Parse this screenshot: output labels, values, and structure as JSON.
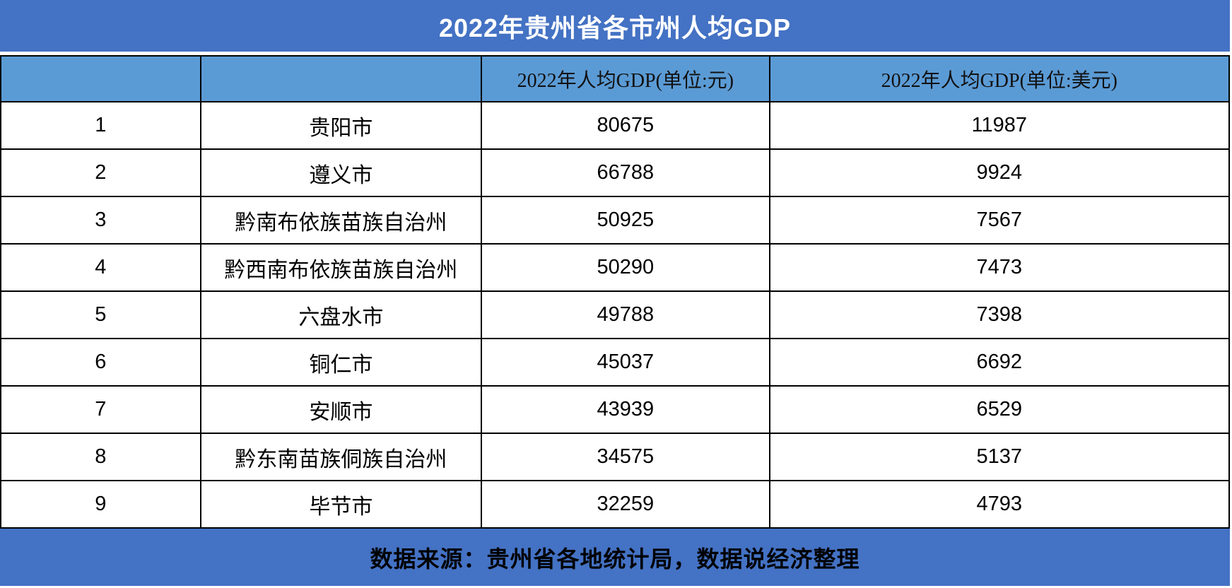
{
  "title": "2022年贵州省各市州人均GDP",
  "header": {
    "rank_label": "",
    "region_label": "",
    "gdp_cny_label": "2022年人均GDP(单位:元)",
    "gdp_usd_label": "2022年人均GDP(单位:美元)"
  },
  "rows": [
    {
      "rank": "1",
      "name": "贵阳市",
      "gdp_cny": "80675",
      "gdp_usd": "11987"
    },
    {
      "rank": "2",
      "name": "遵义市",
      "gdp_cny": "66788",
      "gdp_usd": "9924"
    },
    {
      "rank": "3",
      "name": "黔南布依族苗族自治州",
      "gdp_cny": "50925",
      "gdp_usd": "7567"
    },
    {
      "rank": "4",
      "name": "黔西南布依族苗族自治州",
      "gdp_cny": "50290",
      "gdp_usd": "7473"
    },
    {
      "rank": "5",
      "name": "六盘水市",
      "gdp_cny": "49788",
      "gdp_usd": "7398"
    },
    {
      "rank": "6",
      "name": "铜仁市",
      "gdp_cny": "45037",
      "gdp_usd": "6692"
    },
    {
      "rank": "7",
      "name": "安顺市",
      "gdp_cny": "43939",
      "gdp_usd": "6529"
    },
    {
      "rank": "8",
      "name": "黔东南苗族侗族自治州",
      "gdp_cny": "34575",
      "gdp_usd": "5137"
    },
    {
      "rank": "9",
      "name": "毕节市",
      "gdp_cny": "32259",
      "gdp_usd": "4793"
    }
  ],
  "footer": {
    "source": "数据来源：贵州省各地统计局，数据说经济整理"
  },
  "colors": {
    "title_bar": "#4472C4",
    "header_row": "#5B9BD5",
    "footer_bar": "#4472C4",
    "border": "#000000",
    "title_text": "#FFFFFF",
    "body_text": "#000000"
  },
  "chart_data": {
    "type": "table",
    "title": "2022年贵州省各市州人均GDP",
    "columns": [
      "",
      "",
      "2022年人均GDP(单位:元)",
      "2022年人均GDP(单位:美元)"
    ],
    "rows": [
      [
        1,
        "贵阳市",
        80675,
        11987
      ],
      [
        2,
        "遵义市",
        66788,
        9924
      ],
      [
        3,
        "黔南布依族苗族自治州",
        50925,
        7567
      ],
      [
        4,
        "黔西南布依族苗族自治州",
        50290,
        7473
      ],
      [
        5,
        "六盘水市",
        49788,
        7398
      ],
      [
        6,
        "铜仁市",
        45037,
        6692
      ],
      [
        7,
        "安顺市",
        43939,
        6529
      ],
      [
        8,
        "黔东南苗族侗族自治州",
        34575,
        5137
      ],
      [
        9,
        "毕节市",
        32259,
        4793
      ]
    ],
    "annotations": [
      "数据来源：贵州省各地统计局，数据说经济整理"
    ],
    "layout": "header row light blue, title and source bars dark blue, black gridlines"
  }
}
